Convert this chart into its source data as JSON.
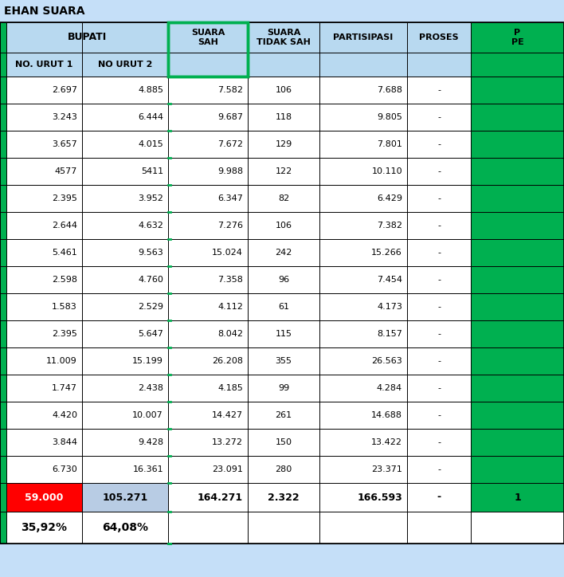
{
  "title": "EHAN SUARA",
  "fig_bg": "#c5dff8",
  "header_bg": "#b8d9f0",
  "green_col_bg": "#00b050",
  "white_bg": "#ffffff",
  "red_cell_bg": "#ff0000",
  "blue_cell_bg": "#b8cce4",
  "border_color": "#000000",
  "green_border": "#00b050",
  "data_rows": [
    [
      "2.697",
      "4.885",
      "7.582",
      "106",
      "7.688",
      "-"
    ],
    [
      "3.243",
      "6.444",
      "9.687",
      "118",
      "9.805",
      "-"
    ],
    [
      "3.657",
      "4.015",
      "7.672",
      "129",
      "7.801",
      "-"
    ],
    [
      "4577",
      "5411",
      "9.988",
      "122",
      "10.110",
      "-"
    ],
    [
      "2.395",
      "3.952",
      "6.347",
      "82",
      "6.429",
      "-"
    ],
    [
      "2.644",
      "4.632",
      "7.276",
      "106",
      "7.382",
      "-"
    ],
    [
      "5.461",
      "9.563",
      "15.024",
      "242",
      "15.266",
      "-"
    ],
    [
      "2.598",
      "4.760",
      "7.358",
      "96",
      "7.454",
      "-"
    ],
    [
      "1.583",
      "2.529",
      "4.112",
      "61",
      "4.173",
      "-"
    ],
    [
      "2.395",
      "5.647",
      "8.042",
      "115",
      "8.157",
      "-"
    ],
    [
      "11.009",
      "15.199",
      "26.208",
      "355",
      "26.563",
      "-"
    ],
    [
      "1.747",
      "2.438",
      "4.185",
      "99",
      "4.284",
      "-"
    ],
    [
      "4.420",
      "10.007",
      "14.427",
      "261",
      "14.688",
      "-"
    ],
    [
      "3.844",
      "9.428",
      "13.272",
      "150",
      "13.422",
      "-"
    ],
    [
      "6.730",
      "16.361",
      "23.091",
      "280",
      "23.371",
      "-"
    ]
  ],
  "total_row": [
    "59.000",
    "105.271",
    "164.271",
    "2.322",
    "166.593",
    "-",
    "1"
  ],
  "pct_row": [
    "35,92%",
    "64,08%"
  ]
}
